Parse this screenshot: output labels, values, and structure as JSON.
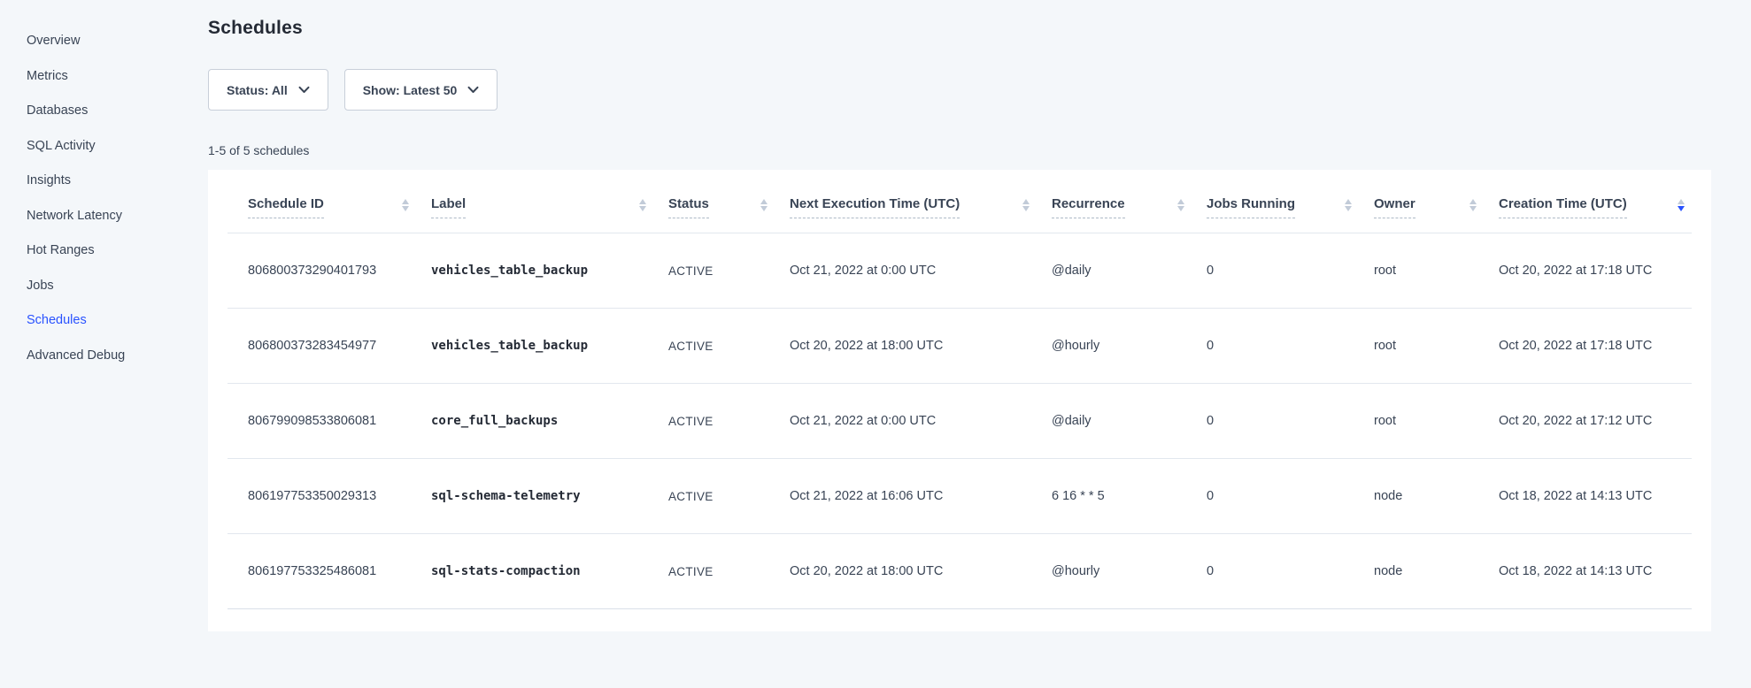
{
  "page": {
    "title": "Schedules"
  },
  "colors": {
    "accent_blue": "#2952ff",
    "background": "#f4f7fa",
    "text_primary": "#394455",
    "panel": "#ffffff"
  },
  "sidebar": {
    "items": [
      {
        "label": "Overview",
        "active": false
      },
      {
        "label": "Metrics",
        "active": false
      },
      {
        "label": "Databases",
        "active": false
      },
      {
        "label": "SQL Activity",
        "active": false
      },
      {
        "label": "Insights",
        "active": false
      },
      {
        "label": "Network Latency",
        "active": false
      },
      {
        "label": "Hot Ranges",
        "active": false
      },
      {
        "label": "Jobs",
        "active": false
      },
      {
        "label": "Schedules",
        "active": true
      },
      {
        "label": "Advanced Debug",
        "active": false
      }
    ]
  },
  "filters": {
    "status_label": "Status: All",
    "show_label": "Show: Latest 50"
  },
  "results_count": "1-5 of 5 schedules",
  "table": {
    "columns": [
      {
        "key": "schedule-id",
        "label": "Schedule ID",
        "sorted": ""
      },
      {
        "key": "label",
        "label": "Label",
        "sorted": ""
      },
      {
        "key": "status",
        "label": "Status",
        "sorted": ""
      },
      {
        "key": "next-execution-time",
        "label": "Next Execution Time (UTC)",
        "sorted": ""
      },
      {
        "key": "recurrence",
        "label": "Recurrence",
        "sorted": ""
      },
      {
        "key": "jobs-running",
        "label": "Jobs Running",
        "sorted": ""
      },
      {
        "key": "owner",
        "label": "Owner",
        "sorted": ""
      },
      {
        "key": "creation-time",
        "label": "Creation Time (UTC)",
        "sorted": "desc"
      }
    ],
    "rows": [
      [
        "806800373290401793",
        "vehicles_table_backup",
        "ACTIVE",
        "Oct 21, 2022 at 0:00 UTC",
        "@daily",
        "0",
        "root",
        "Oct 20, 2022 at 17:18 UTC"
      ],
      [
        "806800373283454977",
        "vehicles_table_backup",
        "ACTIVE",
        "Oct 20, 2022 at 18:00 UTC",
        "@hourly",
        "0",
        "root",
        "Oct 20, 2022 at 17:18 UTC"
      ],
      [
        "806799098533806081",
        "core_full_backups",
        "ACTIVE",
        "Oct 21, 2022 at 0:00 UTC",
        "@daily",
        "0",
        "root",
        "Oct 20, 2022 at 17:12 UTC"
      ],
      [
        "806197753350029313",
        "sql-schema-telemetry",
        "ACTIVE",
        "Oct 21, 2022 at 16:06 UTC",
        "6 16 * * 5",
        "0",
        "node",
        "Oct 18, 2022 at 14:13 UTC"
      ],
      [
        "806197753325486081",
        "sql-stats-compaction",
        "ACTIVE",
        "Oct 20, 2022 at 18:00 UTC",
        "@hourly",
        "0",
        "node",
        "Oct 18, 2022 at 14:13 UTC"
      ]
    ]
  }
}
